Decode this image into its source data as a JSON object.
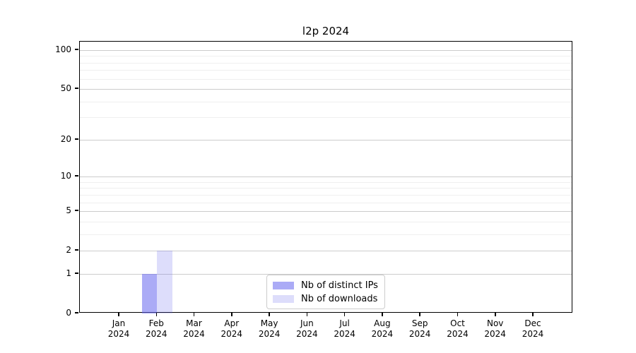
{
  "title": "l2p 2024",
  "chart_data": {
    "type": "bar",
    "title": "l2p 2024",
    "categories": [
      [
        "Jan",
        "2024"
      ],
      [
        "Feb",
        "2024"
      ],
      [
        "Mar",
        "2024"
      ],
      [
        "Apr",
        "2024"
      ],
      [
        "May",
        "2024"
      ],
      [
        "Jun",
        "2024"
      ],
      [
        "Jul",
        "2024"
      ],
      [
        "Aug",
        "2024"
      ],
      [
        "Sep",
        "2024"
      ],
      [
        "Oct",
        "2024"
      ],
      [
        "Nov",
        "2024"
      ],
      [
        "Dec",
        "2024"
      ]
    ],
    "series": [
      {
        "name": "Nb of distinct IPs",
        "color": "rgba(102,102,238,0.55)",
        "solid_color": "#aaaaf4",
        "values": [
          0,
          1,
          0,
          0,
          0,
          0,
          0,
          0,
          0,
          0,
          0,
          0
        ]
      },
      {
        "name": "Nb of downloads",
        "color": "rgba(102,102,238,0.22)",
        "solid_color": "#dcdcf8",
        "values": [
          0,
          2,
          0,
          0,
          0,
          0,
          0,
          0,
          0,
          0,
          0,
          0
        ]
      }
    ],
    "yscale": "log1p",
    "yticks": [
      0,
      1,
      2,
      5,
      10,
      20,
      50,
      100
    ],
    "minor_yticks": [
      3,
      4,
      6,
      7,
      8,
      9,
      30,
      40,
      60,
      70,
      80,
      90
    ],
    "ylim": [
      0,
      116
    ],
    "xlabel": "",
    "ylabel": "",
    "grid": true,
    "legend_position": "inside-bottom-center",
    "colors": {
      "grid_major": "#cccccc",
      "grid_minor": "#efefef",
      "axis": "#000000",
      "background": "#ffffff"
    }
  }
}
